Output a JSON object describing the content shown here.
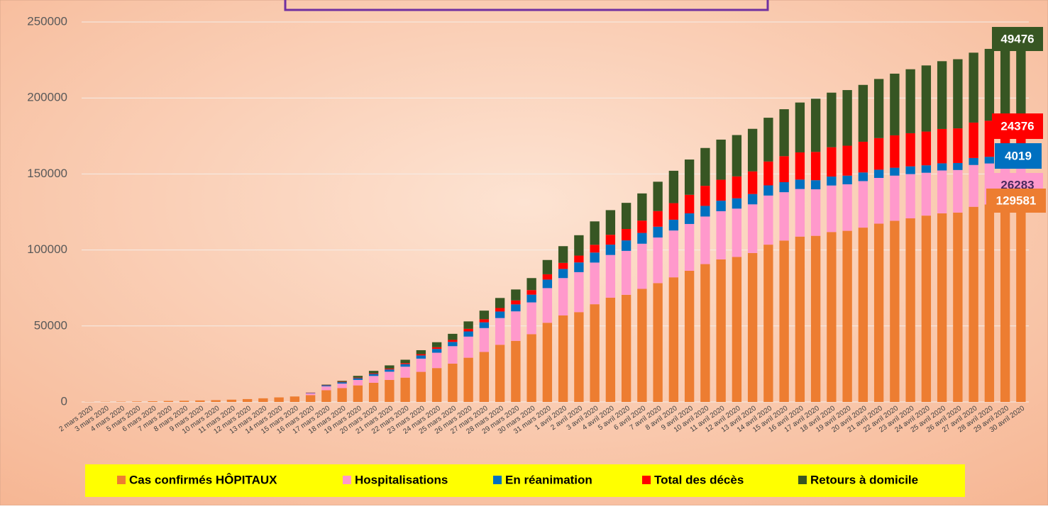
{
  "chart_data": {
    "type": "stacked-bar",
    "categories": [
      "2 mars 2020",
      "3 mars 2020",
      "4 mars 2020",
      "5 mars 2020",
      "6 mars 2020",
      "7 mars 2020",
      "8 mars 2020",
      "9 mars 2020",
      "10 mars 2020",
      "11 mars 2020",
      "12 mars 2020",
      "13 mars 2020",
      "14 mars 2020",
      "15 mars 2020",
      "16 mars 2020",
      "17 mars 2020",
      "18 mars 2020",
      "19 mars 2020",
      "20 mars 2020",
      "21 mars 2020",
      "22 mars 2020",
      "23 mars 2020",
      "24 mars 2020",
      "25 mars 2020",
      "26 mars 2020",
      "27 mars 2020",
      "28 mars 2020",
      "29 mars 2020",
      "30 mars 2020",
      "31 mars 2020",
      "1 avril 2020",
      "2 avril 2020",
      "3 avril 2020",
      "4 avril 2020",
      "5 avril 2020",
      "6 avril 2020",
      "7 avril 2020",
      "8 avril 2020",
      "9 avril 2020",
      "10 avril 2020",
      "11 avril 2020",
      "12 avril 2020",
      "13 avril 2020",
      "14 avril 2020",
      "15 avril 2020",
      "16 avril 2020",
      "17 avril 2020",
      "18 avril 2020",
      "19 avril 2020",
      "20 avril 2020",
      "21 avril 2020",
      "22 avril 2020",
      "23 avril 2020",
      "24 avril 2020",
      "25 avril 2020",
      "26 avril 2020",
      "27 avril 2020",
      "28 avril 2020",
      "29 avril 2020",
      "30 avril 2020"
    ],
    "series": [
      {
        "name": "Cas confirmés HÔPITAUX",
        "color": "#ed7d31",
        "values": [
          100,
          150,
          200,
          300,
          450,
          650,
          800,
          1000,
          1200,
          1500,
          1900,
          2400,
          3000,
          3600,
          4500,
          7700,
          9100,
          10900,
          12600,
          14500,
          16000,
          19800,
          22300,
          25200,
          29100,
          32900,
          37600,
          40200,
          44600,
          52100,
          56900,
          59100,
          64300,
          68600,
          70500,
          74400,
          78200,
          82000,
          86300,
          90700,
          93800,
          95400,
          98000,
          103500,
          106200,
          108800,
          109300,
          111800,
          112600,
          114700,
          117300,
          119200,
          120800,
          122600,
          124100,
          124600,
          128400,
          129900,
          129600,
          129581
        ]
      },
      {
        "name": "Hospitalisations",
        "color": "#ff99cc",
        "values": [
          0,
          0,
          0,
          0,
          0,
          0,
          0,
          0,
          0,
          0,
          0,
          0,
          0,
          0,
          1200,
          2600,
          3000,
          3600,
          4500,
          5400,
          7200,
          8700,
          10100,
          11500,
          13900,
          15700,
          17600,
          19400,
          20900,
          22800,
          24600,
          26300,
          27400,
          28100,
          28900,
          29700,
          30000,
          30800,
          30800,
          31300,
          31700,
          31800,
          32000,
          32300,
          31800,
          31300,
          30600,
          30600,
          30600,
          30600,
          30100,
          29700,
          29100,
          28200,
          28200,
          28000,
          27500,
          27000,
          26600,
          26283
        ]
      },
      {
        "name": "En réanimation",
        "color": "#0070c0",
        "values": [
          0,
          0,
          0,
          0,
          0,
          0,
          0,
          0,
          0,
          0,
          0,
          0,
          0,
          0,
          300,
          700,
          900,
          1100,
          1300,
          1500,
          1700,
          2100,
          2500,
          2800,
          3400,
          3800,
          4300,
          4600,
          5100,
          5600,
          6000,
          6400,
          6600,
          6800,
          6900,
          7100,
          7100,
          7100,
          7000,
          7000,
          6900,
          6800,
          6800,
          6700,
          6600,
          6200,
          6000,
          5900,
          5700,
          5700,
          5400,
          5200,
          5100,
          4900,
          4700,
          4600,
          4600,
          4400,
          4200,
          4019
        ]
      },
      {
        "name": "Total des décès",
        "color": "#ff0000",
        "values": [
          0,
          0,
          0,
          0,
          0,
          0,
          0,
          0,
          0,
          0,
          0,
          0,
          0,
          0,
          150,
          200,
          260,
          370,
          450,
          560,
          670,
          860,
          1100,
          1330,
          1700,
          1990,
          2310,
          2600,
          3000,
          3500,
          4000,
          4500,
          5100,
          6500,
          7500,
          8100,
          10300,
          10900,
          12200,
          13200,
          13800,
          14400,
          14900,
          15700,
          17100,
          17900,
          18600,
          19300,
          19700,
          20200,
          20800,
          21300,
          21800,
          22200,
          22600,
          22800,
          23300,
          23700,
          24100,
          24376
        ]
      },
      {
        "name": "Retours à domicile",
        "color": "#375623",
        "values": [
          0,
          0,
          0,
          0,
          0,
          0,
          0,
          0,
          0,
          0,
          0,
          0,
          0,
          0,
          0,
          200,
          600,
          1200,
          1600,
          2100,
          2200,
          2600,
          3300,
          4000,
          4900,
          5700,
          6600,
          7200,
          7900,
          9400,
          11000,
          13400,
          15400,
          16200,
          17200,
          17900,
          19300,
          21300,
          23200,
          24900,
          26400,
          27200,
          28000,
          28800,
          30900,
          32800,
          35000,
          35900,
          36600,
          37400,
          38900,
          40600,
          42100,
          43500,
          44600,
          45500,
          46000,
          47300,
          48200,
          49476
        ]
      }
    ],
    "ylim": [
      0,
      250000
    ],
    "yticks": [
      0,
      50000,
      100000,
      150000,
      200000,
      250000
    ],
    "grid": true
  }
}
